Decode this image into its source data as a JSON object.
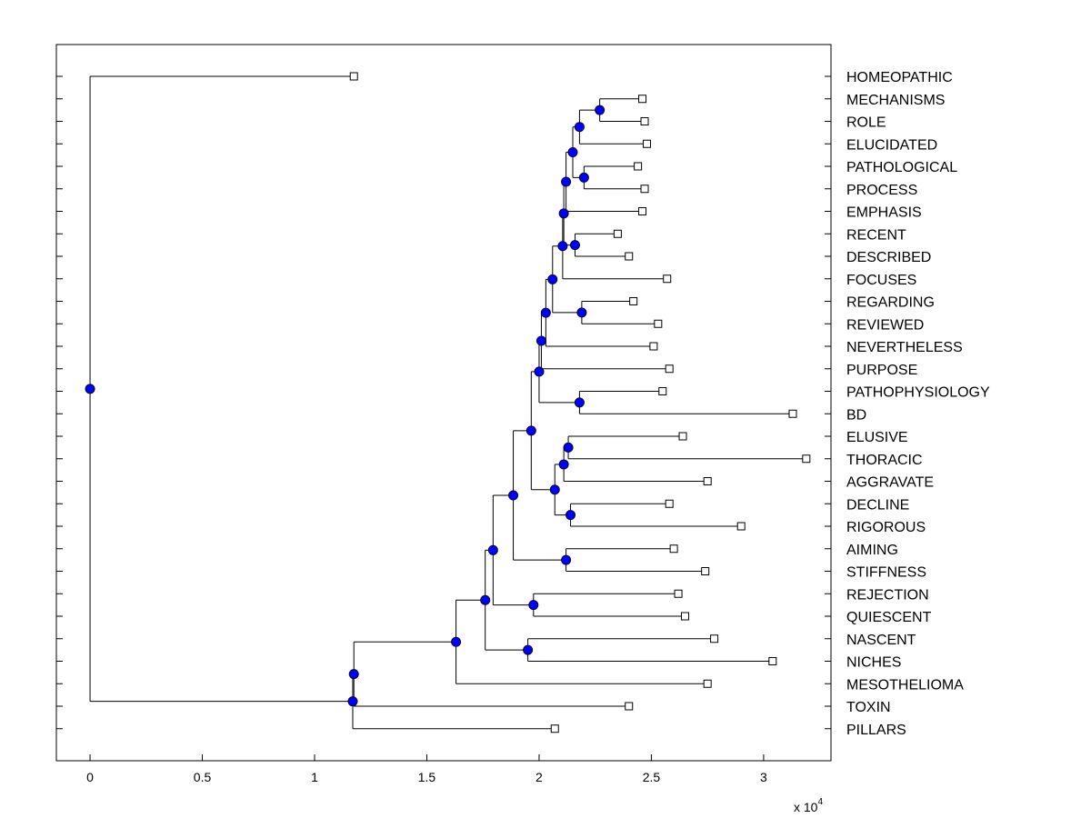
{
  "chart_data": {
    "type": "dendrogram",
    "title": "",
    "xlabel": "",
    "ylabel": "",
    "xlim": [
      -1500,
      33000
    ],
    "x_ticks": [
      0,
      5000,
      10000,
      15000,
      20000,
      25000,
      30000
    ],
    "x_tick_labels": [
      "0",
      "0.5",
      "1",
      "1.5",
      "2",
      "2.5",
      "3"
    ],
    "x_multiplier": {
      "base": "x 10",
      "exponent": "4"
    },
    "colors": {
      "internal_node": "#0000ff",
      "line": "#000000",
      "leaf_marker_fill": "#ffffff"
    },
    "leaves": [
      {
        "label": "HOMEOPATHIC",
        "x": 11750
      },
      {
        "label": "MECHANISMS",
        "x": 24600
      },
      {
        "label": "ROLE",
        "x": 24700
      },
      {
        "label": "ELUCIDATED",
        "x": 24800
      },
      {
        "label": "PATHOLOGICAL",
        "x": 24400
      },
      {
        "label": "PROCESS",
        "x": 24700
      },
      {
        "label": "EMPHASIS",
        "x": 24600
      },
      {
        "label": "RECENT",
        "x": 23500
      },
      {
        "label": "DESCRIBED",
        "x": 24000
      },
      {
        "label": "FOCUSES",
        "x": 25700
      },
      {
        "label": "REGARDING",
        "x": 24200
      },
      {
        "label": "REVIEWED",
        "x": 25300
      },
      {
        "label": "NEVERTHELESS",
        "x": 25100
      },
      {
        "label": "PURPOSE",
        "x": 25800
      },
      {
        "label": "PATHOPHYSIOLOGY",
        "x": 25500
      },
      {
        "label": "BD",
        "x": 31300
      },
      {
        "label": "ELUSIVE",
        "x": 26400
      },
      {
        "label": "THORACIC",
        "x": 31900
      },
      {
        "label": "AGGRAVATE",
        "x": 27500
      },
      {
        "label": "DECLINE",
        "x": 25800
      },
      {
        "label": "RIGOROUS",
        "x": 29000
      },
      {
        "label": "AIMING",
        "x": 26000
      },
      {
        "label": "STIFFNESS",
        "x": 27400
      },
      {
        "label": "REJECTION",
        "x": 26200
      },
      {
        "label": "QUIESCENT",
        "x": 26500
      },
      {
        "label": "NASCENT",
        "x": 27800
      },
      {
        "label": "NICHES",
        "x": 30400
      },
      {
        "label": "MESOTHELIOMA",
        "x": 27500
      },
      {
        "label": "TOXIN",
        "x": 24000
      },
      {
        "label": "PILLARS",
        "x": 20700
      }
    ],
    "nodes": [
      {
        "id": "N1",
        "x": 22700,
        "children": [
          "MECHANISMS",
          "ROLE"
        ]
      },
      {
        "id": "N2",
        "x": 21800,
        "children": [
          "N1",
          "ELUCIDATED"
        ]
      },
      {
        "id": "N3",
        "x": 22000,
        "children": [
          "PATHOLOGICAL",
          "PROCESS"
        ]
      },
      {
        "id": "N4",
        "x": 21500,
        "children": [
          "N2",
          "N3"
        ]
      },
      {
        "id": "N5",
        "x": 21200,
        "children": [
          "N4",
          "EMPHASIS"
        ]
      },
      {
        "id": "N6",
        "x": 21600,
        "children": [
          "RECENT",
          "DESCRIBED"
        ]
      },
      {
        "id": "N7",
        "x": 21100,
        "children": [
          "N5",
          "N6"
        ]
      },
      {
        "id": "N8",
        "x": 21050,
        "children": [
          "N7",
          "FOCUSES"
        ]
      },
      {
        "id": "N9",
        "x": 21900,
        "children": [
          "REGARDING",
          "REVIEWED"
        ]
      },
      {
        "id": "N10",
        "x": 20600,
        "children": [
          "N8",
          "N9"
        ]
      },
      {
        "id": "N11",
        "x": 20300,
        "children": [
          "N10",
          "NEVERTHELESS"
        ]
      },
      {
        "id": "N12",
        "x": 20100,
        "children": [
          "N11",
          "PURPOSE"
        ]
      },
      {
        "id": "N13",
        "x": 21800,
        "children": [
          "PATHOPHYSIOLOGY",
          "BD"
        ]
      },
      {
        "id": "N14",
        "x": 20000,
        "children": [
          "N12",
          "N13"
        ]
      },
      {
        "id": "N15",
        "x": 21300,
        "children": [
          "ELUSIVE",
          "THORACIC"
        ]
      },
      {
        "id": "N16",
        "x": 21100,
        "children": [
          "N15",
          "AGGRAVATE"
        ]
      },
      {
        "id": "N17",
        "x": 21400,
        "children": [
          "DECLINE",
          "RIGOROUS"
        ]
      },
      {
        "id": "N18",
        "x": 20700,
        "children": [
          "N16",
          "N17"
        ]
      },
      {
        "id": "N19",
        "x": 19650,
        "children": [
          "N14",
          "N18"
        ]
      },
      {
        "id": "N20",
        "x": 21200,
        "children": [
          "AIMING",
          "STIFFNESS"
        ]
      },
      {
        "id": "N21",
        "x": 18850,
        "children": [
          "N19",
          "N20"
        ]
      },
      {
        "id": "N22",
        "x": 19750,
        "children": [
          "REJECTION",
          "QUIESCENT"
        ]
      },
      {
        "id": "N23",
        "x": 17950,
        "children": [
          "N21",
          "N22"
        ]
      },
      {
        "id": "N24",
        "x": 19500,
        "children": [
          "NASCENT",
          "NICHES"
        ]
      },
      {
        "id": "N25",
        "x": 17600,
        "children": [
          "N23",
          "N24"
        ]
      },
      {
        "id": "N26",
        "x": 16300,
        "children": [
          "N25",
          "MESOTHELIOMA"
        ]
      },
      {
        "id": "N27",
        "x": 11750,
        "children": [
          "N26",
          "TOXIN"
        ]
      },
      {
        "id": "N28",
        "x": 11700,
        "children": [
          "N27",
          "PILLARS"
        ]
      },
      {
        "id": "ROOT",
        "x": 0,
        "children": [
          "HOMEOPATHIC",
          "N28"
        ]
      }
    ]
  }
}
